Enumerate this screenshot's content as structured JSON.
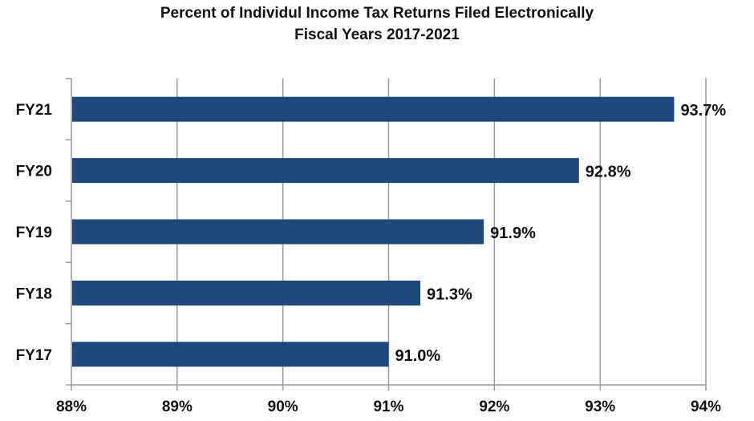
{
  "chart_data": {
    "type": "bar",
    "orientation": "horizontal",
    "title": "Percent of Individul Income Tax Returns Filed Electronically",
    "subtitle": "Fiscal Years 2017-2021",
    "categories": [
      "FY17",
      "FY18",
      "FY19",
      "FY20",
      "FY21"
    ],
    "values": [
      91.0,
      91.3,
      91.9,
      92.8,
      93.7
    ],
    "data_labels": [
      "91.0%",
      "91.3%",
      "91.9%",
      "92.8%",
      "93.7%"
    ],
    "xlim": [
      88,
      94
    ],
    "x_ticks": [
      88,
      89,
      90,
      91,
      92,
      93,
      94
    ],
    "x_tick_labels": [
      "88%",
      "89%",
      "90%",
      "91%",
      "92%",
      "93%",
      "94%"
    ],
    "xlabel": "",
    "ylabel": "",
    "grid": true,
    "legend": "none",
    "bar_color": "#1F497D",
    "gridline_color": "#999999"
  }
}
